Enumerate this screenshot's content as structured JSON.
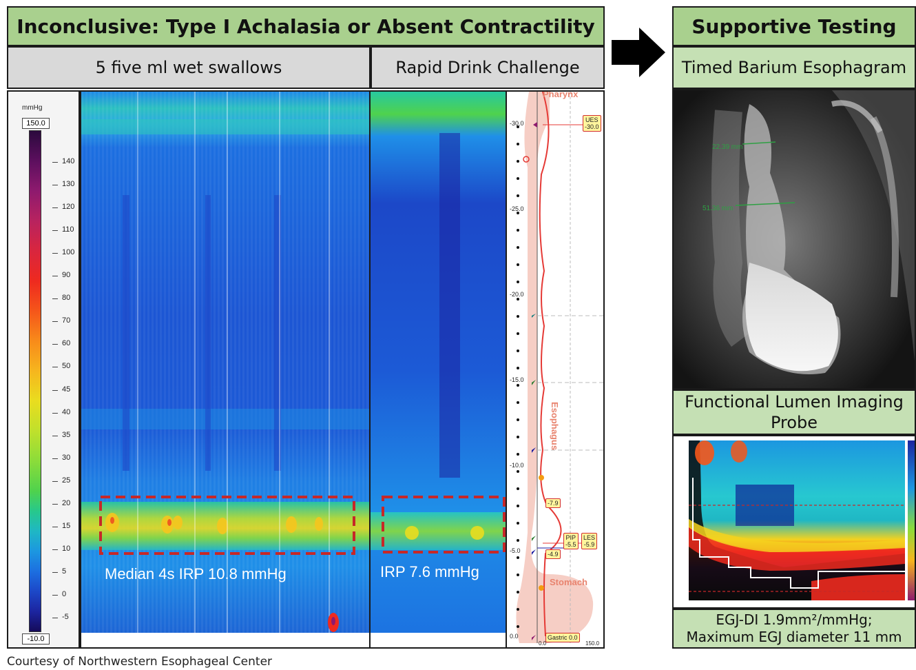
{
  "main_title": "Inconclusive: Type I Achalasia or Absent Contractility",
  "left_subheader": "5 five ml wet swallows",
  "right_subheader": "Rapid Drink Challenge",
  "supportive_title": "Supportive Testing",
  "barium_title": "Timed Barium Esophagram",
  "flip_title": "Functional Lumen Imaging Probe",
  "flip_caption_line1": "EGJ-DI 1.9mm²/mmHg;",
  "flip_caption_line2": "Maximum EGJ diameter 11 mm",
  "credit": "Courtesy of Northwestern Esophageal Center",
  "pressure_scale": {
    "unit": "mmHg",
    "max_label": "150.0",
    "min_label": "-10.0",
    "ticks": [
      "140",
      "130",
      "120",
      "110",
      "100",
      "90",
      "80",
      "70",
      "60",
      "50",
      "45",
      "40",
      "35",
      "30",
      "25",
      "20",
      "15",
      "10",
      "5",
      "0",
      "-5"
    ]
  },
  "irp_wet_swallows": "Median 4s IRP 10.8 mmHg",
  "irp_rapid_drink": "IRP 7.6 mmHg",
  "profile": {
    "pharynx_label": "Pharynx",
    "esophagus_label": "Esophagus",
    "stomach_label": "Stomach",
    "positions": [
      "-30.0",
      "-25.0",
      "-20.0",
      "-15.0",
      "-10.0",
      "-5.0",
      "0.0"
    ],
    "ues_label": "UES",
    "ues_value": "-30.0",
    "les_label": "LES",
    "les_value": "-5.9",
    "pip_label": "PIP",
    "pip_value": "-5.5",
    "marker_upper": "-7.9",
    "marker_lower": "-4.9",
    "gastric_label": "Gastric 0.0",
    "axis_left": "0.0",
    "axis_right": "150.0"
  },
  "barium_measurements": [
    "22.39 mm",
    "51.36 mm"
  ],
  "colors": {
    "header_green": "#a9d08e",
    "header_grey": "#d9d9d9",
    "header_light_green": "#c5e0b4",
    "dashed_box": "#c62828"
  }
}
